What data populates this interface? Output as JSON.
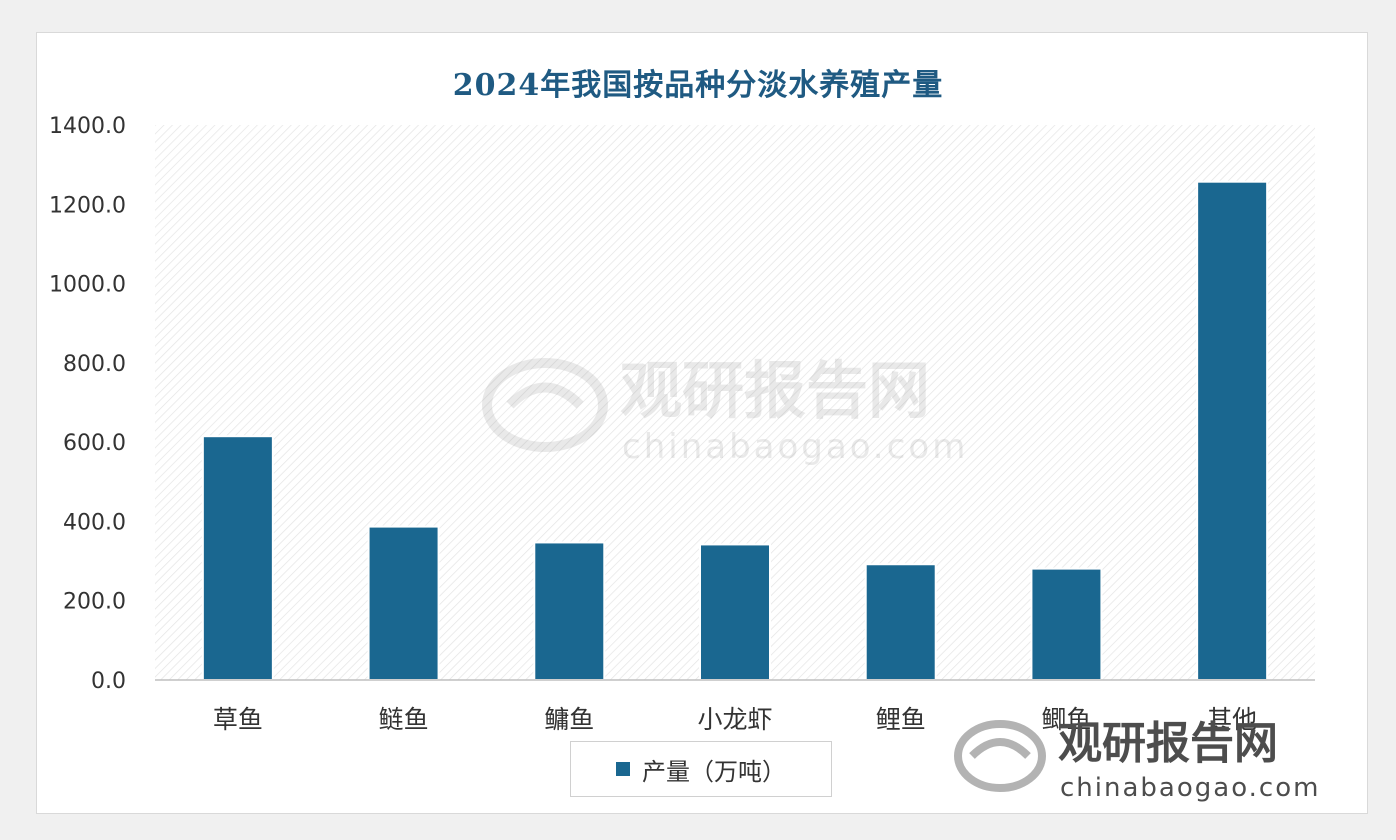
{
  "watermark": {
    "brand_cn": "观研报告网",
    "brand_url": "chinabaogao.com"
  },
  "colors": {
    "bar": "#1a6790",
    "title": "#1f5a82",
    "axis_text": "#333333"
  },
  "chart_data": {
    "type": "bar",
    "title": "2024年我国按品种分淡水养殖产量",
    "categories": [
      "草鱼",
      "鲢鱼",
      "鳙鱼",
      "小龙虾",
      "鲤鱼",
      "鲫鱼",
      "其他"
    ],
    "series": [
      {
        "name": "产量（万吨）",
        "values": [
          615.0,
          387.0,
          347.0,
          342.0,
          292.0,
          281.0,
          1257.0
        ]
      }
    ],
    "ylim": [
      0,
      1400
    ],
    "yticks": [
      "0.0",
      "200.0",
      "400.0",
      "600.0",
      "800.0",
      "1000.0",
      "1200.0",
      "1400.0"
    ],
    "grid": false,
    "legend_position": "bottom",
    "xlabel": "",
    "ylabel": ""
  }
}
